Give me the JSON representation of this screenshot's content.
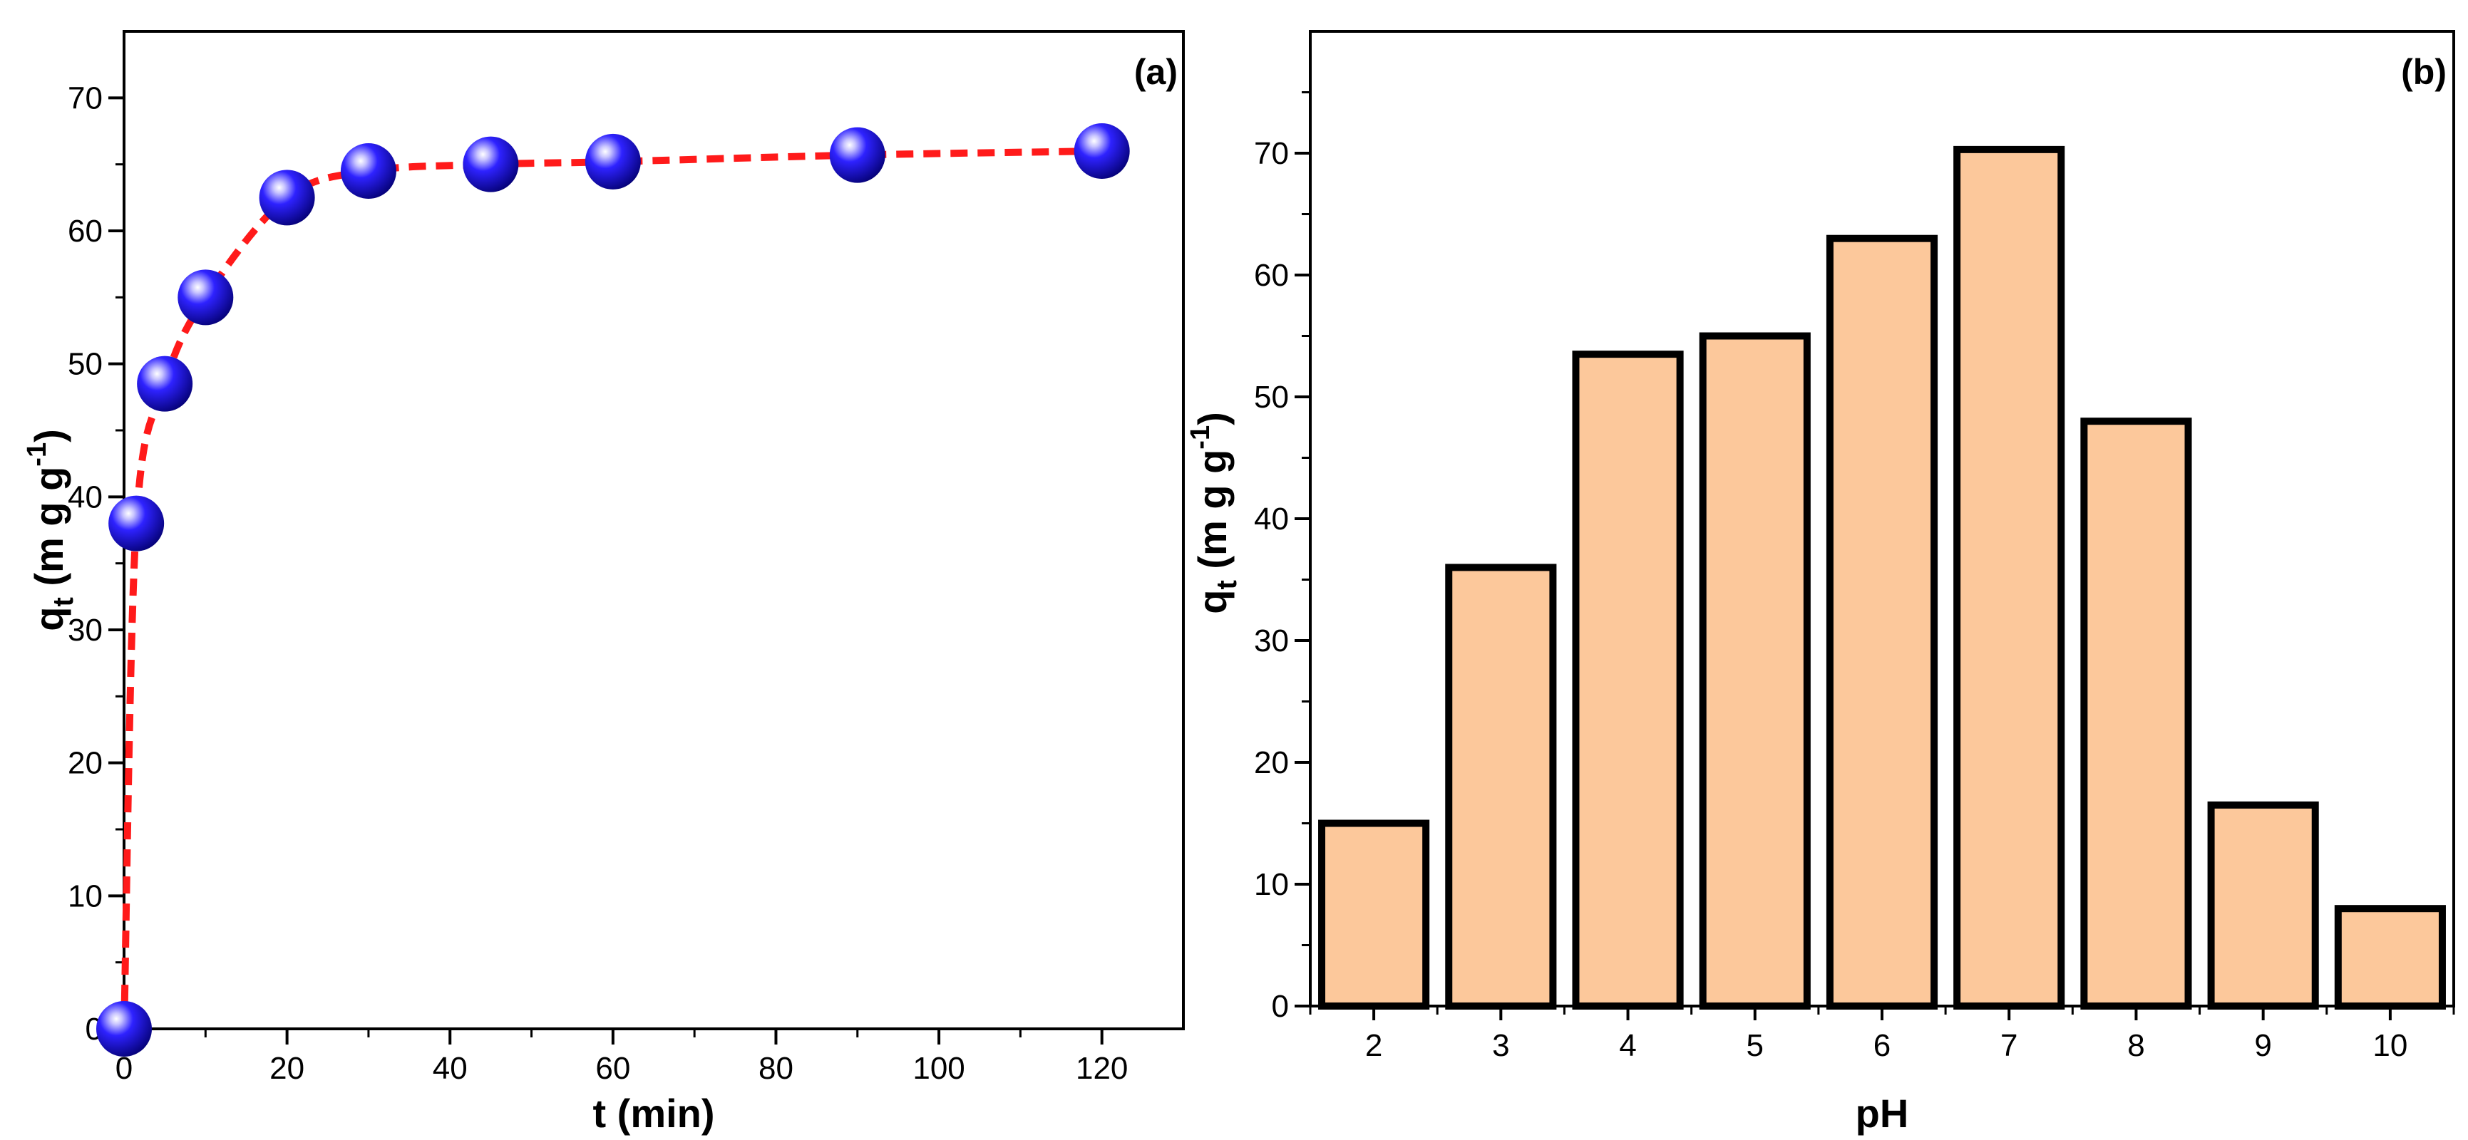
{
  "chart_data": [
    {
      "type": "line",
      "panel_label": "(a)",
      "xlabel": "t (min)",
      "ylabel_main": "q",
      "ylabel_sub": "t",
      "ylabel_unit": " (m g g",
      "ylabel_sup": "-1",
      "ylabel_close": ")",
      "xlim": [
        0,
        130
      ],
      "ylim": [
        0,
        75
      ],
      "xticks": [
        0,
        20,
        40,
        60,
        80,
        100,
        120
      ],
      "yticks": [
        0,
        10,
        20,
        30,
        40,
        50,
        60,
        70
      ],
      "series": [
        {
          "name": "qt",
          "line_color": "#ff1a1a",
          "marker_color": "#1a10e0",
          "x": [
            0,
            1.5,
            5,
            10,
            20,
            30,
            45,
            60,
            90,
            120
          ],
          "y": [
            0,
            38,
            48.5,
            55,
            62.5,
            64.5,
            65,
            65.2,
            65.7,
            66
          ]
        }
      ]
    },
    {
      "type": "bar",
      "panel_label": "(b)",
      "xlabel": "pH",
      "ylabel_main": "q",
      "ylabel_sub": "t",
      "ylabel_unit": " (m g g",
      "ylabel_sup": "-1",
      "ylabel_close": ")",
      "categories": [
        "2",
        "3",
        "4",
        "5",
        "6",
        "7",
        "8",
        "9",
        "10"
      ],
      "values": [
        15,
        36,
        53.5,
        55,
        63,
        70.3,
        48,
        16.5,
        8
      ],
      "ylim": [
        0,
        80
      ],
      "yticks": [
        0,
        10,
        20,
        30,
        40,
        50,
        60,
        70
      ],
      "bar_color": "#fcc89b",
      "edge_color": "#000000"
    }
  ]
}
